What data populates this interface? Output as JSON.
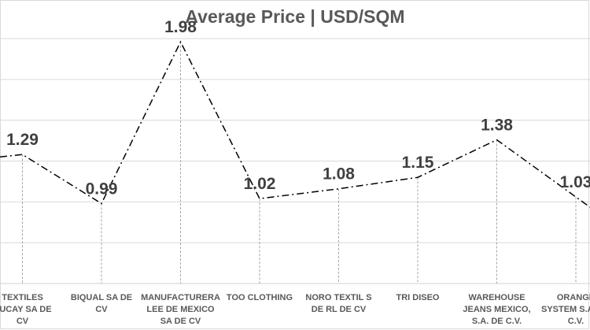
{
  "chart_data": {
    "type": "line",
    "title": "Average Price | USD/SQM",
    "xlabel": "",
    "ylabel": "",
    "ylim": [
      0.5,
      2.0
    ],
    "grid": true,
    "legend": "none",
    "categories": [
      "TEXTILES BUCAY SA DE CV",
      "BIQUAL SA DE CV",
      "MANUFACTURERA LEE DE MEXICO SA DE CV",
      "TOO CLOTHING",
      "NORO TEXTIL S DE RL DE CV",
      "TRI DISEO",
      "WAREHOUSE JEANS MEXICO, S.A. DE C.V.",
      "ORANGE SYSTEM S.A. DE C.V."
    ],
    "values": [
      1.29,
      0.99,
      1.98,
      1.02,
      1.08,
      1.15,
      1.38,
      1.03
    ],
    "data_labels": [
      "1.29",
      "0.99",
      "1.98",
      "1.02",
      "1.08",
      "1.15",
      "1.38",
      "1.03"
    ],
    "series_color": "#000000",
    "grid_color": "#d9d9d9"
  }
}
